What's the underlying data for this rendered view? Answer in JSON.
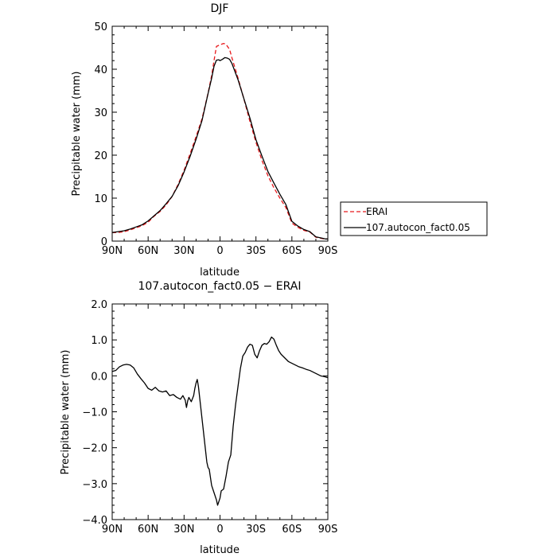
{
  "chart_data": [
    {
      "type": "line",
      "title": "DJF",
      "xlabel": "latitude",
      "ylabel": "Precipitable water (mm)",
      "xlim": [
        -90,
        90
      ],
      "ylim": [
        0,
        50
      ],
      "x_ticks": [
        -90,
        -60,
        -30,
        0,
        30,
        60,
        90
      ],
      "x_tick_labels": [
        "90N",
        "60N",
        "30N",
        "0",
        "30S",
        "60S",
        "90S"
      ],
      "y_ticks": [
        0,
        10,
        20,
        30,
        40,
        50
      ],
      "y_tick_labels": [
        "0",
        "10",
        "20",
        "30",
        "40",
        "50"
      ],
      "legend_placement": "outside-right",
      "series": [
        {
          "name": "ERAI",
          "color": "#e8191c",
          "dash": "dashed",
          "x": [
            -90,
            -85,
            -80,
            -75,
            -70,
            -65,
            -60,
            -55,
            -50,
            -45,
            -40,
            -35,
            -30,
            -25,
            -20,
            -15,
            -10,
            -7,
            -5,
            -3,
            0,
            3,
            5,
            8,
            10,
            15,
            20,
            25,
            30,
            35,
            40,
            45,
            50,
            55,
            60,
            65,
            70,
            75,
            80,
            85,
            88,
            90
          ],
          "y": [
            2.0,
            2.0,
            2.2,
            2.6,
            3.1,
            3.6,
            4.4,
            5.8,
            6.9,
            8.4,
            10.4,
            13.2,
            16.5,
            20.3,
            24.3,
            28.5,
            34.4,
            38.5,
            42.0,
            45.3,
            45.7,
            46.0,
            45.8,
            44.6,
            42.6,
            38.0,
            33.0,
            27.8,
            23.0,
            18.8,
            15.2,
            12.4,
            10.0,
            7.8,
            4.2,
            3.2,
            2.5,
            2.1,
            0.9,
            0.6,
            0.5,
            0.5
          ]
        },
        {
          "name": "107.autocon_fact0.05",
          "color": "#000000",
          "dash": "solid",
          "x": [
            -90,
            -85,
            -80,
            -75,
            -70,
            -65,
            -60,
            -55,
            -50,
            -45,
            -40,
            -35,
            -30,
            -25,
            -20,
            -15,
            -10,
            -7,
            -5,
            -3,
            -1,
            0,
            2,
            4,
            6,
            8,
            10,
            15,
            20,
            25,
            30,
            35,
            40,
            45,
            50,
            55,
            60,
            65,
            70,
            75,
            80,
            85,
            88,
            90
          ],
          "y": [
            2.0,
            2.2,
            2.4,
            2.8,
            3.3,
            3.8,
            4.7,
            5.9,
            7.1,
            8.7,
            10.4,
            12.9,
            16.1,
            19.7,
            23.7,
            28.1,
            34.3,
            37.9,
            40.7,
            42.1,
            42.2,
            42.0,
            42.3,
            42.7,
            42.6,
            42.3,
            41.3,
            37.6,
            33.1,
            28.6,
            23.6,
            19.8,
            16.2,
            13.5,
            10.9,
            8.5,
            4.6,
            3.5,
            2.7,
            2.2,
            1.0,
            0.7,
            0.5,
            0.5
          ]
        }
      ]
    },
    {
      "type": "line",
      "title": "107.autocon_fact0.05 − ERAI",
      "xlabel": "latitude",
      "ylabel": "Precipitable water (mm)",
      "xlim": [
        -90,
        90
      ],
      "ylim": [
        -4.0,
        2.0
      ],
      "x_ticks": [
        -90,
        -60,
        -30,
        0,
        30,
        60,
        90
      ],
      "x_tick_labels": [
        "90N",
        "60N",
        "30N",
        "0",
        "30S",
        "60S",
        "90S"
      ],
      "y_ticks": [
        -4,
        -3,
        -2,
        -1,
        0,
        1,
        2
      ],
      "y_tick_labels": [
        "−4.0",
        "−3.0",
        "−2.0",
        "−1.0",
        "0.0",
        "1.0",
        "2.0"
      ],
      "series": [
        {
          "color": "#000000",
          "dash": "solid",
          "x": [
            -90,
            -87,
            -84,
            -81,
            -78,
            -75,
            -72,
            -69,
            -66,
            -63,
            -60,
            -57,
            -54,
            -51,
            -48,
            -45,
            -42,
            -39,
            -36,
            -33,
            -31,
            -29,
            -28,
            -27,
            -26,
            -24,
            -22,
            -21,
            -20,
            -19,
            -18,
            -16,
            -13,
            -11,
            -10,
            -9,
            -7,
            -5,
            -3,
            -2,
            -1,
            0,
            1,
            3,
            5,
            7,
            9,
            11,
            13,
            15,
            17,
            19,
            21,
            23,
            25,
            27,
            29,
            31,
            33,
            35,
            37,
            39,
            41,
            43,
            45,
            47,
            49,
            51,
            54,
            57,
            60,
            63,
            66,
            69,
            72,
            75,
            78,
            81,
            84,
            87,
            90
          ],
          "y": [
            0.12,
            0.15,
            0.25,
            0.3,
            0.32,
            0.3,
            0.22,
            0.05,
            -0.08,
            -0.2,
            -0.35,
            -0.4,
            -0.32,
            -0.42,
            -0.45,
            -0.42,
            -0.55,
            -0.52,
            -0.6,
            -0.65,
            -0.55,
            -0.68,
            -0.88,
            -0.7,
            -0.6,
            -0.72,
            -0.55,
            -0.35,
            -0.2,
            -0.1,
            -0.3,
            -0.9,
            -1.8,
            -2.4,
            -2.55,
            -2.6,
            -3.05,
            -3.25,
            -3.45,
            -3.6,
            -3.5,
            -3.4,
            -3.2,
            -3.15,
            -2.8,
            -2.4,
            -2.2,
            -1.4,
            -0.8,
            -0.3,
            0.2,
            0.55,
            0.65,
            0.8,
            0.88,
            0.85,
            0.6,
            0.5,
            0.7,
            0.85,
            0.9,
            0.88,
            0.95,
            1.08,
            1.02,
            0.85,
            0.7,
            0.6,
            0.5,
            0.4,
            0.35,
            0.3,
            0.25,
            0.22,
            0.18,
            0.15,
            0.1,
            0.05,
            0.0,
            -0.02,
            -0.05
          ]
        }
      ]
    }
  ]
}
